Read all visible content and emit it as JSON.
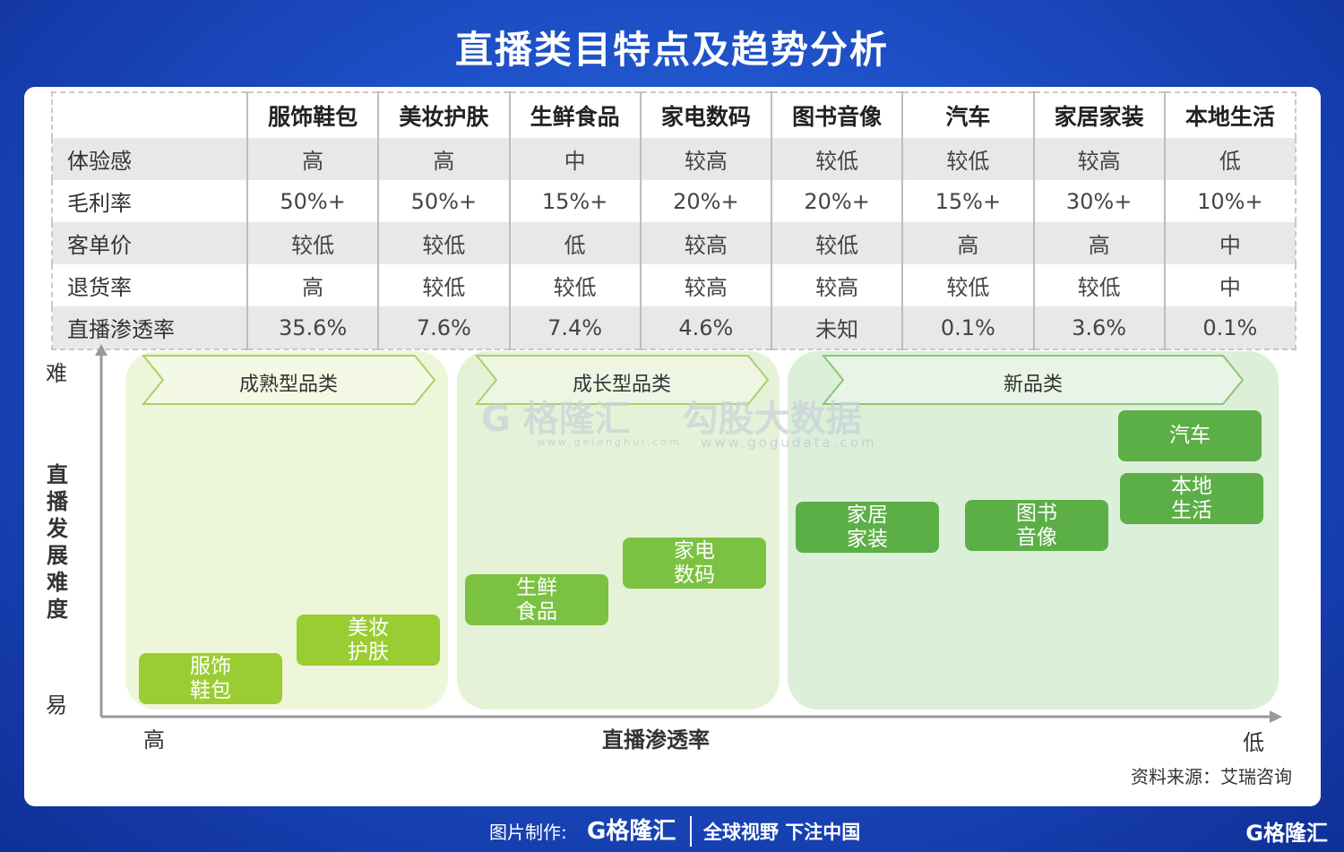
{
  "title": "直播类目特点及趋势分析",
  "table": {
    "header": [
      "",
      "服饰鞋包",
      "美妆护肤",
      "生鲜食品",
      "家电数码",
      "图书音像",
      "汽车",
      "家居家装",
      "本地生活"
    ],
    "rows": [
      {
        "label": "体验感",
        "values": [
          "高",
          "高",
          "中",
          "较高",
          "较低",
          "较低",
          "较高",
          "低"
        ]
      },
      {
        "label": "毛利率",
        "values": [
          "50%+",
          "50%+",
          "15%+",
          "20%+",
          "20%+",
          "15%+",
          "30%+",
          "10%+"
        ]
      },
      {
        "label": "客单价",
        "values": [
          "较低",
          "较低",
          "低",
          "较高",
          "较低",
          "高",
          "高",
          "中"
        ]
      },
      {
        "label": "退货率",
        "values": [
          "高",
          "较低",
          "较低",
          "较高",
          "较高",
          "较低",
          "较低",
          "中"
        ]
      },
      {
        "label": "直播渗透率",
        "values": [
          "35.6%",
          "7.6%",
          "7.4%",
          "4.6%",
          "未知",
          "0.1%",
          "3.6%",
          "0.1%"
        ]
      }
    ]
  },
  "diagram": {
    "zones": [
      {
        "label": "成熟型品类",
        "color": "#eef6d9"
      },
      {
        "label": "成长型品类",
        "color": "#e6f2d8"
      },
      {
        "label": "新品类",
        "color": "#dcefd9"
      }
    ],
    "boxes": [
      {
        "line1": "服饰",
        "line2": "鞋包",
        "color": "#9acd32"
      },
      {
        "line1": "美妆",
        "line2": "护肤",
        "color": "#9acd32"
      },
      {
        "line1": "生鲜",
        "line2": "食品",
        "color": "#7cc242"
      },
      {
        "line1": "家电",
        "line2": "数码",
        "color": "#7cc242"
      },
      {
        "line1": "家居",
        "line2": "家装",
        "color": "#5cae46"
      },
      {
        "line1": "图书",
        "line2": "音像",
        "color": "#5cae46"
      },
      {
        "line1": "汽车",
        "line2": "",
        "color": "#5cae46"
      },
      {
        "line1": "本地",
        "line2": "生活",
        "color": "#5cae46"
      }
    ],
    "y_axis": {
      "top": "难",
      "bottom": "易",
      "label": "直播发展难度"
    },
    "x_axis": {
      "left": "高",
      "right": "低",
      "label": "直播渗透率"
    }
  },
  "watermark": {
    "brand1": "格隆汇",
    "url1": "www.gelonghui.com",
    "brand2": "勾股大数据",
    "url2": "www.gogudata.com"
  },
  "source": "资料来源：艾瑞咨询",
  "footer": {
    "made_by": "图片制作:",
    "logo": "格隆汇",
    "slogan": "全球视野 下注中国",
    "corner_logo": "格隆汇"
  }
}
